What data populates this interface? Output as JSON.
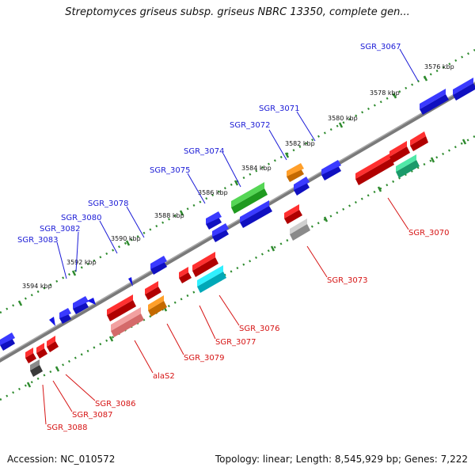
{
  "title": "Streptomyces griseus subsp. griseus NBRC 13350, complete gen...",
  "footer": {
    "accession": "Accession: NC_010572",
    "summary": "Topology: linear; Length: 8,545,929 bp; Genes: 7,222"
  },
  "ruler_ticks": [
    "3576 kbp",
    "3578 kbp",
    "3580 kbp",
    "3582 kbp",
    "3584 kbp",
    "3586 kbp",
    "3588 kbp",
    "3590 kbp",
    "3592 kbp",
    "3594 kbp"
  ],
  "genes_top": [
    "SGR_3067",
    "SGR_3071",
    "SGR_3072",
    "SGR_3074",
    "SGR_3075",
    "SGR_3078",
    "SGR_3080",
    "SGR_3082",
    "SGR_3083"
  ],
  "genes_bottom": [
    "SGR_3070",
    "SGR_3073",
    "SGR_3076",
    "SGR_3077",
    "SGR_3079",
    "alaS2",
    "SGR_3086",
    "SGR_3087",
    "SGR_3088"
  ],
  "colors": {
    "forward": "#1414e6",
    "reverse": "#e61414",
    "axis": "#808080",
    "ruler": "#2e8b2e",
    "label_top": "#1a1ad6",
    "label_bottom": "#d61414"
  }
}
